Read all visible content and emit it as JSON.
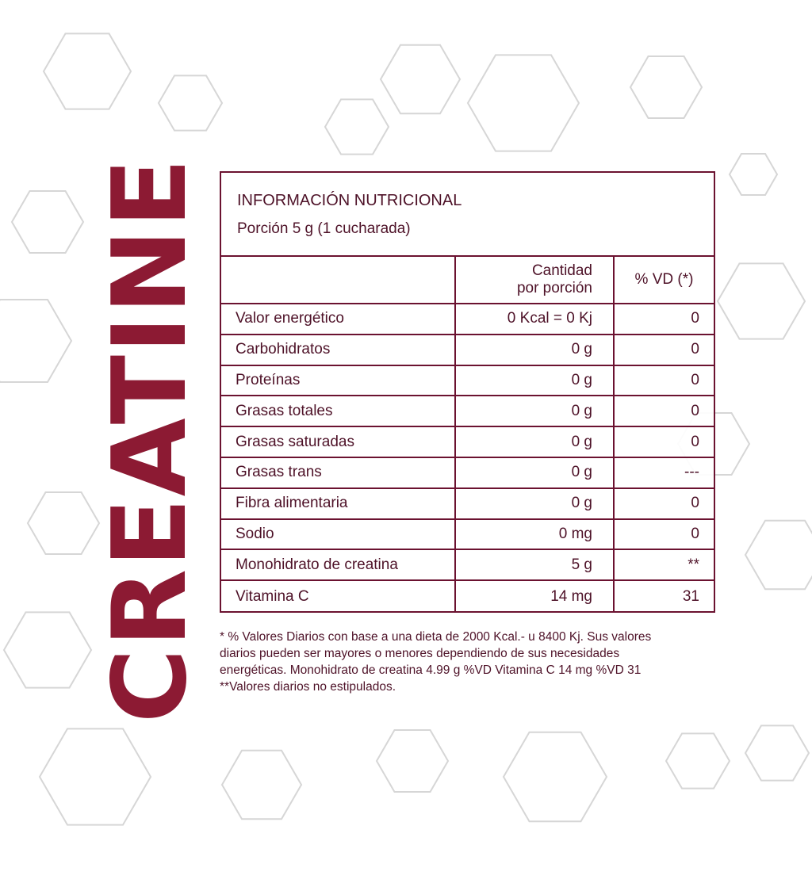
{
  "brand": {
    "name": "CREATINE",
    "color": "#8c1a33"
  },
  "label": {
    "title": "INFORMACIÓN NUTRICIONAL",
    "portion": "Porción 5 g (1 cucharada)",
    "columns": {
      "amount_line1": "Cantidad",
      "amount_line2": "por porción",
      "dv": "% VD (*)"
    },
    "rows": [
      {
        "nutrient": "Valor energético",
        "amount": "0 Kcal = 0 Kj",
        "dv": "0"
      },
      {
        "nutrient": "Carbohidratos",
        "amount": "0 g",
        "dv": "0"
      },
      {
        "nutrient": "Proteínas",
        "amount": "0 g",
        "dv": "0"
      },
      {
        "nutrient": "Grasas totales",
        "amount": "0 g",
        "dv": "0"
      },
      {
        "nutrient": "Grasas saturadas",
        "amount": "0 g",
        "dv": "0"
      },
      {
        "nutrient": "Grasas trans",
        "amount": "0 g",
        "dv": "---"
      },
      {
        "nutrient": "Fibra alimentaria",
        "amount": "0 g",
        "dv": "0"
      },
      {
        "nutrient": "Sodio",
        "amount": "0 mg",
        "dv": "0"
      },
      {
        "nutrient": "Monohidrato de creatina",
        "amount": "5 g",
        "dv": "**"
      },
      {
        "nutrient": "Vitamina C",
        "amount": "14 mg",
        "dv": "31"
      }
    ],
    "border_color": "#6b1230"
  },
  "footnote": {
    "line1": "* % Valores Diarios con base a una dieta de 2000 Kcal.- u 8400 Kj. Sus valores",
    "line2": "diarios pueden ser mayores o menores dependiendo de sus necesidades",
    "line3": "energéticas. Monohidrato de creatina 4.99 g %VD Vitamina C 14 mg %VD 31",
    "line4": "**Valores diarios no estipulados."
  }
}
